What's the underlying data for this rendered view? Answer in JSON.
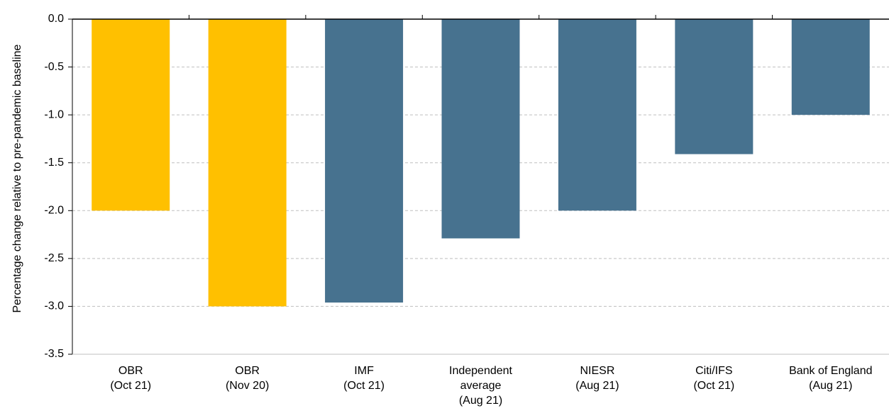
{
  "chart_data": {
    "type": "bar",
    "categories": [
      [
        "OBR",
        "(Oct 21)"
      ],
      [
        "OBR",
        "(Nov 20)"
      ],
      [
        "IMF",
        "(Oct 21)"
      ],
      [
        "Independent",
        "average",
        "(Aug 21)"
      ],
      [
        "NIESR",
        "(Aug 21)"
      ],
      [
        "Citi/IFS",
        "(Oct 21)"
      ],
      [
        "Bank of England",
        "(Aug 21)"
      ]
    ],
    "values": [
      -2.0,
      -3.0,
      -2.96,
      -2.29,
      -2.0,
      -1.41,
      -1.0
    ],
    "bar_colors": [
      "#FFC000",
      "#FFC000",
      "#47728F",
      "#47728F",
      "#47728F",
      "#47728F",
      "#47728F"
    ],
    "ylabel": "Percentage change relative to pre-pandemic baseline",
    "xlabel": "",
    "ylim": [
      -3.5,
      0.0
    ],
    "yticks": [
      "0.0",
      "-0.5",
      "-1.0",
      "-1.5",
      "-2.0",
      "-2.5",
      "-3.0",
      "-3.5"
    ],
    "ytick_values": [
      0,
      -0.5,
      -1.0,
      -1.5,
      -2.0,
      -2.5,
      -3.0,
      -3.5
    ],
    "grid": true,
    "grid_color": "#BFBFBF"
  }
}
